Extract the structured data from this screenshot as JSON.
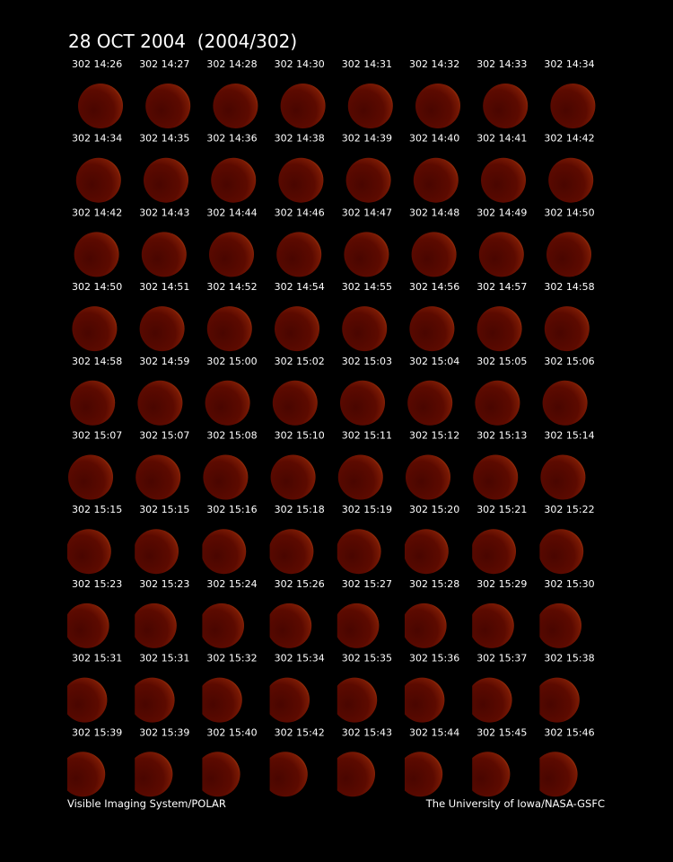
{
  "header": {
    "title": "28 OCT 2004  (2004/302)"
  },
  "grid": {
    "rows": [
      [
        "302 14:26",
        "302 14:27",
        "302 14:28",
        "302 14:30",
        "302 14:31",
        "302 14:32",
        "302 14:33",
        "302 14:34"
      ],
      [
        "302 14:34",
        "302 14:35",
        "302 14:36",
        "302 14:38",
        "302 14:39",
        "302 14:40",
        "302 14:41",
        "302 14:42"
      ],
      [
        "302 14:42",
        "302 14:43",
        "302 14:44",
        "302 14:46",
        "302 14:47",
        "302 14:48",
        "302 14:49",
        "302 14:50"
      ],
      [
        "302 14:50",
        "302 14:51",
        "302 14:52",
        "302 14:54",
        "302 14:55",
        "302 14:56",
        "302 14:57",
        "302 14:58"
      ],
      [
        "302 14:58",
        "302 14:59",
        "302 15:00",
        "302 15:02",
        "302 15:03",
        "302 15:04",
        "302 15:05",
        "302 15:06"
      ],
      [
        "302 15:07",
        "302 15:07",
        "302 15:08",
        "302 15:10",
        "302 15:11",
        "302 15:12",
        "302 15:13",
        "302 15:14"
      ],
      [
        "302 15:15",
        "302 15:15",
        "302 15:16",
        "302 15:18",
        "302 15:19",
        "302 15:20",
        "302 15:21",
        "302 15:22"
      ],
      [
        "302 15:23",
        "302 15:23",
        "302 15:24",
        "302 15:26",
        "302 15:27",
        "302 15:28",
        "302 15:29",
        "302 15:30"
      ],
      [
        "302 15:31",
        "302 15:31",
        "302 15:32",
        "302 15:34",
        "302 15:35",
        "302 15:36",
        "302 15:37",
        "302 15:38"
      ],
      [
        "302 15:39",
        "302 15:39",
        "302 15:40",
        "302 15:42",
        "302 15:43",
        "302 15:44",
        "302 15:45",
        "302 15:46"
      ]
    ]
  },
  "footer": {
    "left": "Visible Imaging System/POLAR",
    "right": "The University of Iowa/NASA-GSFC"
  }
}
